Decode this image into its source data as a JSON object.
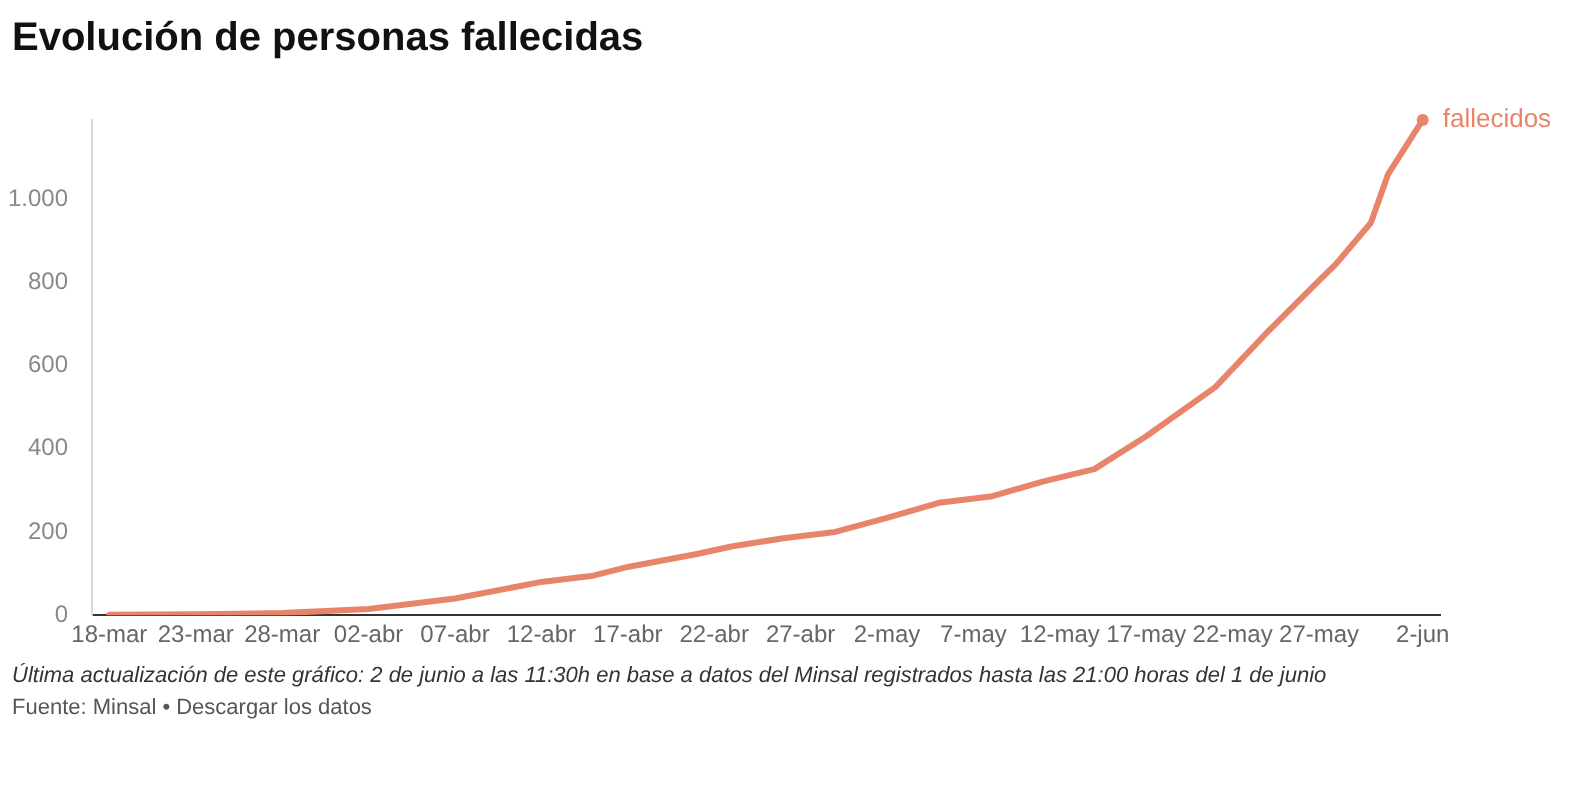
{
  "chart_data": {
    "type": "line",
    "title": "Evolución de personas fallecidas",
    "x": [
      "--03-18",
      "--03-23",
      "--03-28",
      "--04-02",
      "--04-07",
      "--04-12",
      "--04-14",
      "--04-15",
      "--04-17",
      "--04-21",
      "--04-23",
      "--04-26",
      "--04-29",
      "--05-02",
      "--05-05",
      "--05-08",
      "--05-11",
      "--05-14",
      "--05-17",
      "--05-21",
      "--05-24",
      "--05-27",
      "--05-28",
      "--05-30",
      "--05-31",
      "--06-02"
    ],
    "series": [
      {
        "name": "fallecidos",
        "color": "#e8846a",
        "values": [
          1,
          2,
          5,
          15,
          40,
          80,
          90,
          95,
          116,
          147,
          165,
          185,
          200,
          234,
          270,
          285,
          321,
          351,
          430,
          548,
          680,
          804,
          845,
          943,
          1060,
          1190
        ]
      }
    ],
    "xlim": [
      "--03-17",
      "--06-03"
    ],
    "xticks": [
      {
        "value": "--03-18",
        "label": "18-mar"
      },
      {
        "value": "--03-23",
        "label": "23-mar"
      },
      {
        "value": "--03-28",
        "label": "28-mar"
      },
      {
        "value": "--04-02",
        "label": "02-abr"
      },
      {
        "value": "--04-07",
        "label": "07-abr"
      },
      {
        "value": "--04-12",
        "label": "12-abr"
      },
      {
        "value": "--04-17",
        "label": "17-abr"
      },
      {
        "value": "--04-22",
        "label": "22-abr"
      },
      {
        "value": "--04-27",
        "label": "27-abr"
      },
      {
        "value": "--05-02",
        "label": "2-may"
      },
      {
        "value": "--05-07",
        "label": "7-may"
      },
      {
        "value": "--05-12",
        "label": "12-may"
      },
      {
        "value": "--05-17",
        "label": "17-may"
      },
      {
        "value": "--05-22",
        "label": "22-may"
      },
      {
        "value": "--05-27",
        "label": "27-may"
      },
      {
        "value": "--06-02",
        "label": "2-jun"
      }
    ],
    "ylim": [
      0,
      1190
    ],
    "yticks": [
      0,
      200,
      400,
      600,
      800,
      {
        "value": 1000,
        "label": "1.000"
      }
    ],
    "grid": false,
    "legend": "top right",
    "annotations": [
      "Última actualización de este gráfico: 2 de junio a las 11:30h en base a datos del Minsal registrados hasta las 21:00 horas del 1 de junio",
      "Fuente: Minsal • Descargar los datos"
    ]
  }
}
